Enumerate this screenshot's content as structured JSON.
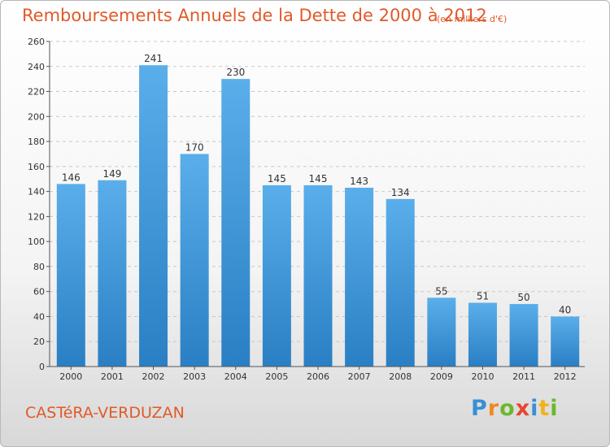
{
  "header": {
    "title": "Remboursements Annuels de la Dette de 2000 à 2012",
    "unit": "(en milliers d'€)"
  },
  "footer": {
    "commune": "CASTéRA-VERDUZAN",
    "logo": {
      "letters": [
        "P",
        "r",
        "o",
        "x",
        "i",
        "t",
        "i"
      ],
      "colors": [
        "#3a8fd6",
        "#f08a1c",
        "#6ab82e",
        "#e8462e",
        "#3a8fd6",
        "#f0b21c",
        "#6ab82e"
      ]
    }
  },
  "colors": {
    "bar_top": "#5aaeea",
    "bar_bottom": "#2a7fc4",
    "title": "#e05a2a"
  },
  "chart_data": {
    "type": "bar",
    "title": "Remboursements Annuels de la Dette de 2000 à 2012",
    "xlabel": "",
    "ylabel": "",
    "categories": [
      "2000",
      "2001",
      "2002",
      "2003",
      "2004",
      "2005",
      "2006",
      "2007",
      "2008",
      "2009",
      "2010",
      "2011",
      "2012"
    ],
    "values": [
      146,
      149,
      241,
      170,
      230,
      145,
      145,
      143,
      134,
      55,
      51,
      50,
      40
    ],
    "ylim": [
      0,
      260
    ],
    "yticks": [
      0,
      20,
      40,
      60,
      80,
      100,
      120,
      140,
      160,
      180,
      200,
      220,
      240,
      260
    ],
    "grid": true,
    "legend": "none"
  }
}
